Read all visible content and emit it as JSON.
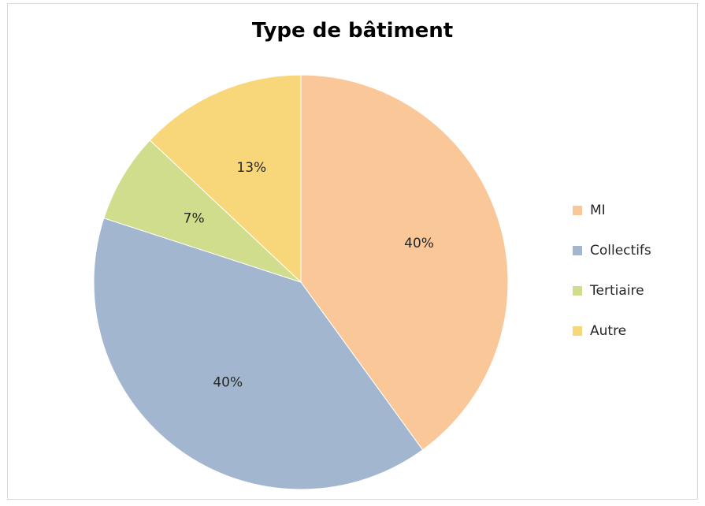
{
  "chart_data": {
    "type": "pie",
    "title": "Type de bâtiment",
    "categories": [
      "MI",
      "Collectifs",
      "Tertiaire",
      "Autre"
    ],
    "values": [
      40,
      40,
      7,
      13
    ],
    "labels": [
      "40%",
      "40%",
      "7%",
      "13%"
    ],
    "colors": [
      "#FAC898",
      "#A2B7CF",
      "#CFDD8C",
      "#F8D77B"
    ],
    "legend_position": "right"
  }
}
